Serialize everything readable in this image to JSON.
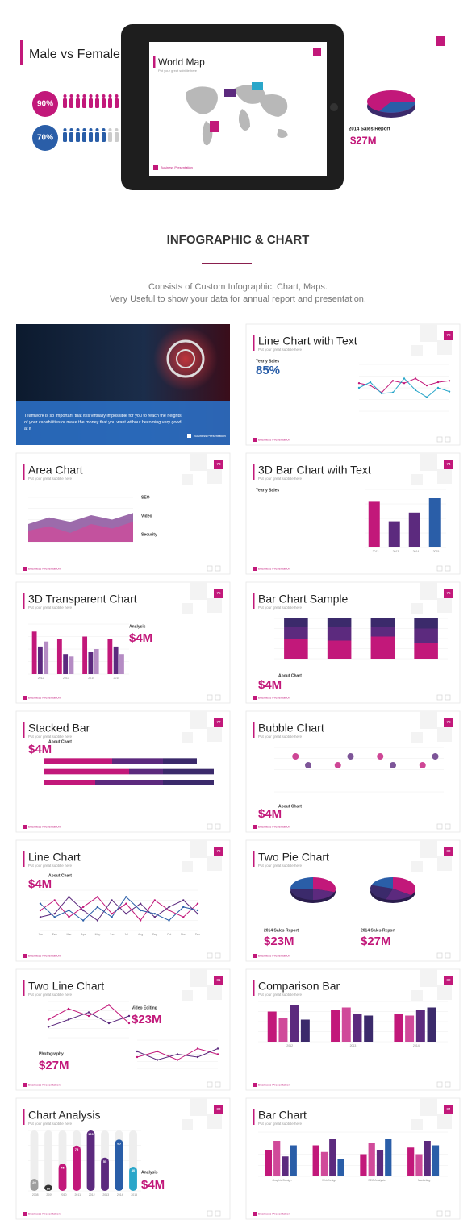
{
  "hero": {
    "left_title": "Male vs Female",
    "percent_1": "90%",
    "percent_2": "70%",
    "tablet_title": "World Map",
    "tablet_subtitle": "Put your great subtitle here",
    "right_label": "2014 Sales Report",
    "right_value": "$27M"
  },
  "heading": "INFOGRAPHIC & CHART",
  "description": [
    "Consists of Custom Infographic, Chart, Maps.",
    "Very Useful to show your data for annual report and presentation."
  ],
  "intro_slide": {
    "text": "Teamwork is so important that it is virtually impossible for you to reach the heights of your capabilities or make the money that you want without becoming very good at it"
  },
  "footer": "Business Presentation",
  "slides": [
    {
      "title": "Line Chart with Text",
      "subtitle": "Put your great subtitle here",
      "page": "72",
      "highlights": [
        "85%"
      ],
      "captions": [
        "Yearly Sales"
      ],
      "charts": [
        {
          "type": "line",
          "ylim": [
            0,
            100
          ],
          "series": [
            {
              "color": "#c2187a",
              "values": [
                60,
                55,
                40,
                65,
                60,
                70,
                55,
                62,
                65
              ]
            },
            {
              "color": "#2aa6c9",
              "values": [
                50,
                62,
                38,
                40,
                70,
                45,
                30,
                50,
                42
              ]
            }
          ]
        }
      ]
    },
    {
      "title": "Area Chart",
      "subtitle": "Put your great subtitle here",
      "page": "73",
      "highlights": [],
      "captions": [
        "SEO",
        "Video",
        "Security"
      ],
      "charts": [
        {
          "type": "area",
          "ylim": [
            0,
            100
          ],
          "series": [
            {
              "color": "#7b3a8f",
              "values": [
                40,
                55,
                45,
                60,
                50,
                65
              ]
            },
            {
              "color": "#d04a9a",
              "values": [
                25,
                35,
                20,
                40,
                30,
                45
              ]
            }
          ]
        }
      ]
    },
    {
      "title": "3D Bar Chart with Text",
      "subtitle": "Put your great subtitle here",
      "page": "74",
      "highlights": [],
      "captions": [
        "Yearly Sales"
      ],
      "charts": [
        {
          "type": "bar",
          "ylim": [
            0,
            100
          ],
          "categories": [
            "2012",
            "2013",
            "2014",
            "2015"
          ],
          "colors": [
            "#c2187a",
            "#5c2a7e",
            "#5c2a7e",
            "#2a5ea8"
          ],
          "series": [
            {
              "values": [
                80,
                45,
                60,
                85
              ]
            }
          ]
        }
      ]
    },
    {
      "title": "3D Transparent Chart",
      "subtitle": "Put your great subtitle here",
      "page": "75",
      "highlights": [
        "$4M"
      ],
      "captions": [
        "Analysis"
      ],
      "charts": [
        {
          "type": "bar",
          "ylim": [
            0,
            100
          ],
          "categories": [
            "2012",
            "2013",
            "2014",
            "2015"
          ],
          "series": [
            {
              "color": "#c2187a",
              "values": [
                85,
                70,
                75,
                70
              ]
            },
            {
              "color": "#5c2a7e",
              "values": [
                55,
                40,
                45,
                55
              ]
            },
            {
              "color": "#b58cc4",
              "values": [
                65,
                35,
                50,
                40
              ]
            }
          ]
        }
      ]
    },
    {
      "title": "Bar Chart Sample",
      "subtitle": "Put your great subtitle here",
      "page": "76",
      "highlights": [
        "$4M"
      ],
      "captions": [
        "About Chart"
      ],
      "charts": [
        {
          "type": "stacked",
          "ylim": [
            0,
            100
          ],
          "series": [
            {
              "color": "#c2187a",
              "values": [
                50,
                45,
                55,
                40
              ]
            },
            {
              "color": "#5c2a7e",
              "values": [
                30,
                35,
                25,
                35
              ]
            },
            {
              "color": "#3b2a6b",
              "values": [
                20,
                20,
                20,
                25
              ]
            }
          ]
        }
      ]
    },
    {
      "title": "Stacked Bar",
      "subtitle": "Put your great subtitle here",
      "page": "77",
      "highlights": [
        "$4M"
      ],
      "captions": [
        "About Chart"
      ],
      "charts": [
        {
          "type": "hbar",
          "xlim": [
            0,
            5
          ],
          "series": [
            {
              "color": "#c2187a",
              "values": [
                2,
                2.5,
                1.5
              ]
            },
            {
              "color": "#5c2a7e",
              "values": [
                1.5,
                1,
                2
              ]
            },
            {
              "color": "#3b2a6b",
              "values": [
                1,
                1.5,
                1.5
              ]
            }
          ]
        }
      ]
    },
    {
      "title": "Bubble Chart",
      "subtitle": "Put your great subtitle here",
      "page": "78",
      "highlights": [
        "$4M"
      ],
      "captions": [
        "About Chart"
      ],
      "charts": [
        {
          "type": "bubble",
          "ylim": [
            0,
            5
          ],
          "series": [
            {
              "color": "#c2187a",
              "values": [
                4,
                3,
                4,
                3
              ]
            },
            {
              "color": "#5c2a7e",
              "values": [
                3,
                4,
                3,
                4
              ]
            }
          ]
        }
      ]
    },
    {
      "title": "Line Chart",
      "subtitle": "Put your great subtitle here",
      "page": "79",
      "highlights": [
        "$4M"
      ],
      "captions": [
        "About Chart"
      ],
      "charts": [
        {
          "type": "line",
          "ylim": [
            0,
            120
          ],
          "categories": [
            "Jan",
            "Feb",
            "Mar",
            "Apr",
            "May",
            "Jun",
            "Jul",
            "Aug",
            "Sep",
            "Oct",
            "Nov",
            "Dec"
          ],
          "series": [
            {
              "color": "#c2187a",
              "values": [
                60,
                90,
                40,
                70,
                100,
                50,
                80,
                30,
                90,
                60,
                40,
                80
              ]
            },
            {
              "color": "#5c2a7e",
              "values": [
                40,
                50,
                100,
                60,
                30,
                90,
                50,
                80,
                40,
                70,
                90,
                50
              ]
            },
            {
              "color": "#2a5ea8",
              "values": [
                80,
                40,
                60,
                30,
                70,
                40,
                100,
                60,
                50,
                30,
                70,
                60
              ]
            }
          ]
        }
      ]
    },
    {
      "title": "Two Pie Chart",
      "subtitle": "Put your great subtitle here",
      "page": "80",
      "highlights": [
        "$23M",
        "$27M"
      ],
      "captions": [
        "2014 Sales Report",
        "2014 Sales Report"
      ],
      "charts": [
        {
          "type": "pie",
          "colors": [
            "#c2187a",
            "#5c2a7e",
            "#3b2a6b",
            "#2a5ea8"
          ],
          "series": [
            {
              "values": [
                30,
                20,
                25,
                25
              ]
            },
            {
              "values": [
                35,
                20,
                25,
                20
              ]
            }
          ]
        }
      ]
    },
    {
      "title": "Two Line Chart",
      "subtitle": "Put your great subtitle here",
      "page": "81",
      "highlights": [
        "$23M",
        "$27M"
      ],
      "captions": [
        "Video Editing",
        "Photography"
      ],
      "charts": [
        {
          "type": "line",
          "ylim": [
            0,
            100
          ],
          "series": [
            {
              "color": "#c2187a",
              "values": [
                50,
                80,
                60,
                90,
                40
              ]
            },
            {
              "color": "#5c2a7e",
              "values": [
                30,
                50,
                70,
                40,
                60
              ]
            }
          ]
        },
        {
          "type": "line",
          "ylim": [
            0,
            100
          ],
          "series": [
            {
              "color": "#c2187a",
              "values": [
                40,
                60,
                30,
                70,
                50
              ]
            },
            {
              "color": "#5c2a7e",
              "values": [
                60,
                30,
                50,
                40,
                70
              ]
            }
          ]
        }
      ]
    },
    {
      "title": "Comparison Bar",
      "subtitle": "Put your great subtitle here",
      "page": "82",
      "highlights": [],
      "captions": [],
      "charts": [
        {
          "type": "bar",
          "ylim": [
            0,
            100
          ],
          "categories": [
            "2012",
            "2013",
            "2014"
          ],
          "series": [
            {
              "color": "#c2187a",
              "values": [
                75,
                80,
                70
              ]
            },
            {
              "color": "#d04a9a",
              "values": [
                60,
                85,
                65
              ]
            },
            {
              "color": "#5c2a7e",
              "values": [
                90,
                70,
                80
              ]
            },
            {
              "color": "#3b2a6b",
              "values": [
                55,
                65,
                85
              ]
            }
          ]
        }
      ]
    },
    {
      "title": "Chart Analysis",
      "subtitle": "Put your great subtitle here",
      "page": "83",
      "highlights": [
        "$4M"
      ],
      "captions": [
        "Analysis"
      ],
      "charts": [
        {
          "type": "bar",
          "ylim": [
            0,
            100
          ],
          "show_values": true,
          "categories": [
            "2008",
            "2009",
            "2010",
            "2011",
            "2012",
            "2013",
            "2014",
            "2015"
          ],
          "colors": [
            "#9e9e9e",
            "#333333",
            "#c2187a",
            "#c2187a",
            "#5c2a7e",
            "#5c2a7e",
            "#2a5ea8",
            "#2aa6c9"
          ],
          "series": [
            {
              "values": [
                20,
                10,
                45,
                75,
                100,
                55,
                85,
                40
              ]
            }
          ]
        }
      ]
    },
    {
      "title": "Bar Chart",
      "subtitle": "Put your great subtitle here",
      "page": "84",
      "highlights": [],
      "captions": [],
      "charts": [
        {
          "type": "bar",
          "ylim": [
            0,
            100
          ],
          "categories": [
            "Graphic Design",
            "WebDesign",
            "SEO Analysis",
            "Marketing"
          ],
          "series": [
            {
              "color": "#c2187a",
              "values": [
                60,
                70,
                50,
                65
              ]
            },
            {
              "color": "#d04a9a",
              "values": [
                80,
                55,
                75,
                50
              ]
            },
            {
              "color": "#5c2a7e",
              "values": [
                45,
                85,
                60,
                80
              ]
            },
            {
              "color": "#2a5ea8",
              "values": [
                70,
                40,
                85,
                70
              ]
            }
          ]
        }
      ]
    }
  ]
}
